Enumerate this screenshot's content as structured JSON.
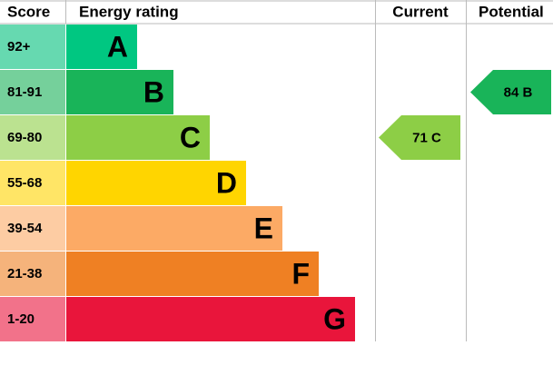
{
  "chart_data": {
    "type": "epc",
    "headers": [
      "Score",
      "Energy rating",
      "Current",
      "Potential"
    ],
    "bands": [
      {
        "score": "92+",
        "rating": "A",
        "color": "#00c781",
        "score_color": "#66d9b0"
      },
      {
        "score": "81-91",
        "rating": "B",
        "color": "#19b459",
        "score_color": "#75d09b"
      },
      {
        "score": "69-80",
        "rating": "C",
        "color": "#8dce46",
        "score_color": "#bbe290"
      },
      {
        "score": "55-68",
        "rating": "D",
        "color": "#ffd500",
        "score_color": "#ffe566"
      },
      {
        "score": "39-54",
        "rating": "E",
        "color": "#fcaa65",
        "score_color": "#fdcca3"
      },
      {
        "score": "21-38",
        "rating": "F",
        "color": "#ef8023",
        "score_color": "#f5b37b"
      },
      {
        "score": "1-20",
        "rating": "G",
        "color": "#e9153b",
        "score_color": "#f2728a"
      }
    ],
    "series": [
      {
        "name": "Current",
        "values": [
          71
        ],
        "value_labels": [
          "71 C"
        ],
        "color": "#8dce46"
      },
      {
        "name": "Potential",
        "values": [
          84
        ],
        "value_labels": [
          "84 B"
        ],
        "color": "#19b459"
      }
    ]
  }
}
